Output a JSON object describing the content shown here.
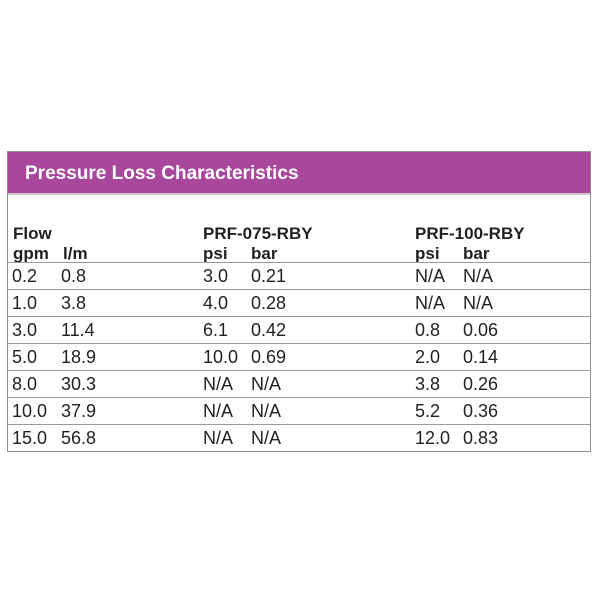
{
  "table": {
    "title": "Pressure Loss Characteristics",
    "headers": {
      "flow": "Flow",
      "gpm": "gpm",
      "lpm": "l/m",
      "model1": "PRF-075-RBY",
      "model2": "PRF-100-RBY",
      "psi": "psi",
      "bar": "bar"
    },
    "rows": [
      [
        "0.2",
        "0.8",
        "3.0",
        "0.21",
        "N/A",
        "N/A"
      ],
      [
        "1.0",
        "3.8",
        "4.0",
        "0.28",
        "N/A",
        "N/A"
      ],
      [
        "3.0",
        "11.4",
        "6.1",
        "0.42",
        "0.8",
        "0.06"
      ],
      [
        "5.0",
        "18.9",
        "10.0",
        "0.69",
        "2.0",
        "0.14"
      ],
      [
        "8.0",
        "30.3",
        "N/A",
        "N/A",
        "3.8",
        "0.26"
      ],
      [
        "10.0",
        "37.9",
        "N/A",
        "N/A",
        "5.2",
        "0.36"
      ],
      [
        "15.0",
        "56.8",
        "N/A",
        "N/A",
        "12.0",
        "0.83"
      ]
    ]
  }
}
